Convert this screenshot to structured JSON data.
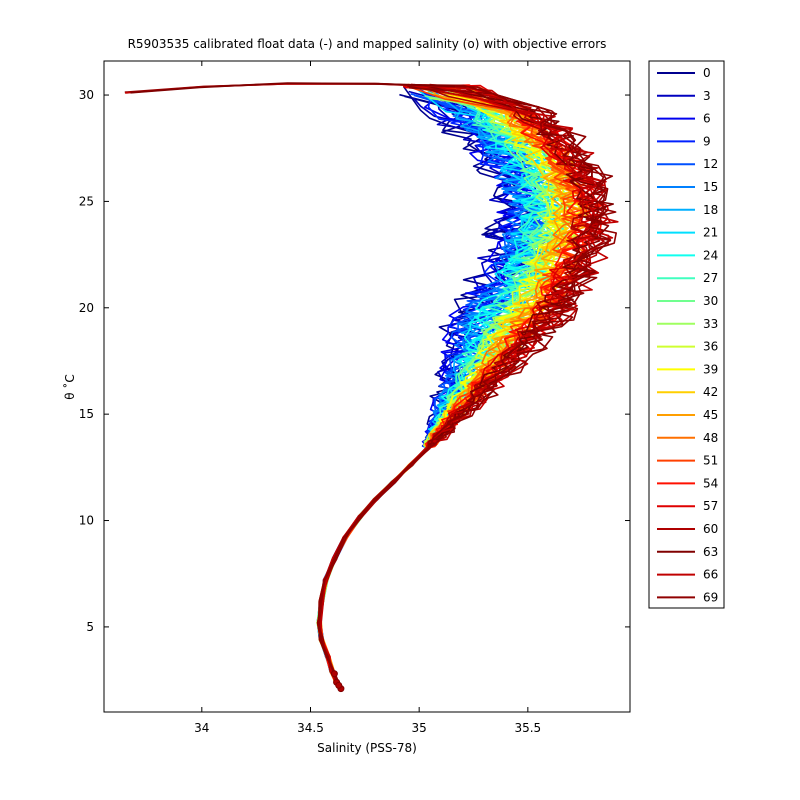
{
  "chart_data": {
    "type": "line",
    "title": "R5903535 calibrated float data (-) and mapped salinity (o) with objective errors",
    "xlabel": "Salinity (PSS-78)",
    "ylabel": "θ ˚C",
    "xlim": [
      33.55,
      35.97
    ],
    "ylim": [
      1.0,
      31.6
    ],
    "xticks": [
      "34",
      "34.5",
      "35",
      "35.5"
    ],
    "xtick_values": [
      34,
      34.5,
      35,
      35.5
    ],
    "yticks": [
      "5",
      "10",
      "15",
      "20",
      "25",
      "30"
    ],
    "ytick_values": [
      5,
      10,
      15,
      20,
      25,
      30
    ],
    "grid": false,
    "legend_position": "outside-right",
    "deep_profile": [
      [
        34.64,
        2.1
      ],
      [
        34.62,
        2.4
      ],
      [
        34.6,
        2.9
      ],
      [
        34.58,
        3.6
      ],
      [
        34.55,
        4.4
      ],
      [
        34.54,
        5.2
      ],
      [
        34.55,
        6.2
      ],
      [
        34.57,
        7.2
      ],
      [
        34.61,
        8.2
      ],
      [
        34.66,
        9.2
      ],
      [
        34.73,
        10.2
      ],
      [
        34.8,
        11.0
      ],
      [
        34.88,
        11.8
      ],
      [
        34.96,
        12.6
      ],
      [
        35.04,
        13.4
      ]
    ],
    "upper_envelope": [
      [
        35.04,
        13.4
      ],
      [
        35.14,
        14.6
      ],
      [
        35.26,
        16.0
      ],
      [
        35.38,
        17.5
      ],
      [
        35.5,
        19.0
      ],
      [
        35.62,
        20.8
      ],
      [
        35.72,
        22.8
      ],
      [
        35.76,
        24.8
      ],
      [
        35.68,
        26.8
      ],
      [
        35.56,
        28.2
      ],
      [
        35.45,
        29.2
      ],
      [
        35.32,
        30.0
      ],
      [
        35.15,
        30.4
      ]
    ],
    "surface_extension": [
      [
        35.15,
        30.4
      ],
      [
        34.8,
        30.5
      ],
      [
        34.4,
        30.55
      ],
      [
        34.0,
        30.4
      ],
      [
        33.66,
        30.1
      ]
    ],
    "series": [
      {
        "name": "0",
        "color": "#00008f"
      },
      {
        "name": "3",
        "color": "#0000bf"
      },
      {
        "name": "6",
        "color": "#0000ef"
      },
      {
        "name": "9",
        "color": "#0020ff"
      },
      {
        "name": "12",
        "color": "#0050ff"
      },
      {
        "name": "15",
        "color": "#0080ff"
      },
      {
        "name": "18",
        "color": "#00afff"
      },
      {
        "name": "21",
        "color": "#00dfff"
      },
      {
        "name": "24",
        "color": "#10ffef"
      },
      {
        "name": "27",
        "color": "#40ffbf"
      },
      {
        "name": "30",
        "color": "#70ff8f"
      },
      {
        "name": "33",
        "color": "#9fff60"
      },
      {
        "name": "36",
        "color": "#cfff30"
      },
      {
        "name": "39",
        "color": "#ffff00"
      },
      {
        "name": "42",
        "color": "#ffcf00"
      },
      {
        "name": "45",
        "color": "#ff9f00"
      },
      {
        "name": "48",
        "color": "#ff7000"
      },
      {
        "name": "51",
        "color": "#ff4000"
      },
      {
        "name": "54",
        "color": "#ff1000"
      },
      {
        "name": "57",
        "color": "#df0000"
      },
      {
        "name": "60",
        "color": "#af0000"
      },
      {
        "name": "63",
        "color": "#800000"
      },
      {
        "name": "66",
        "color": "#c00000"
      },
      {
        "name": "69",
        "color": "#900000"
      }
    ]
  }
}
